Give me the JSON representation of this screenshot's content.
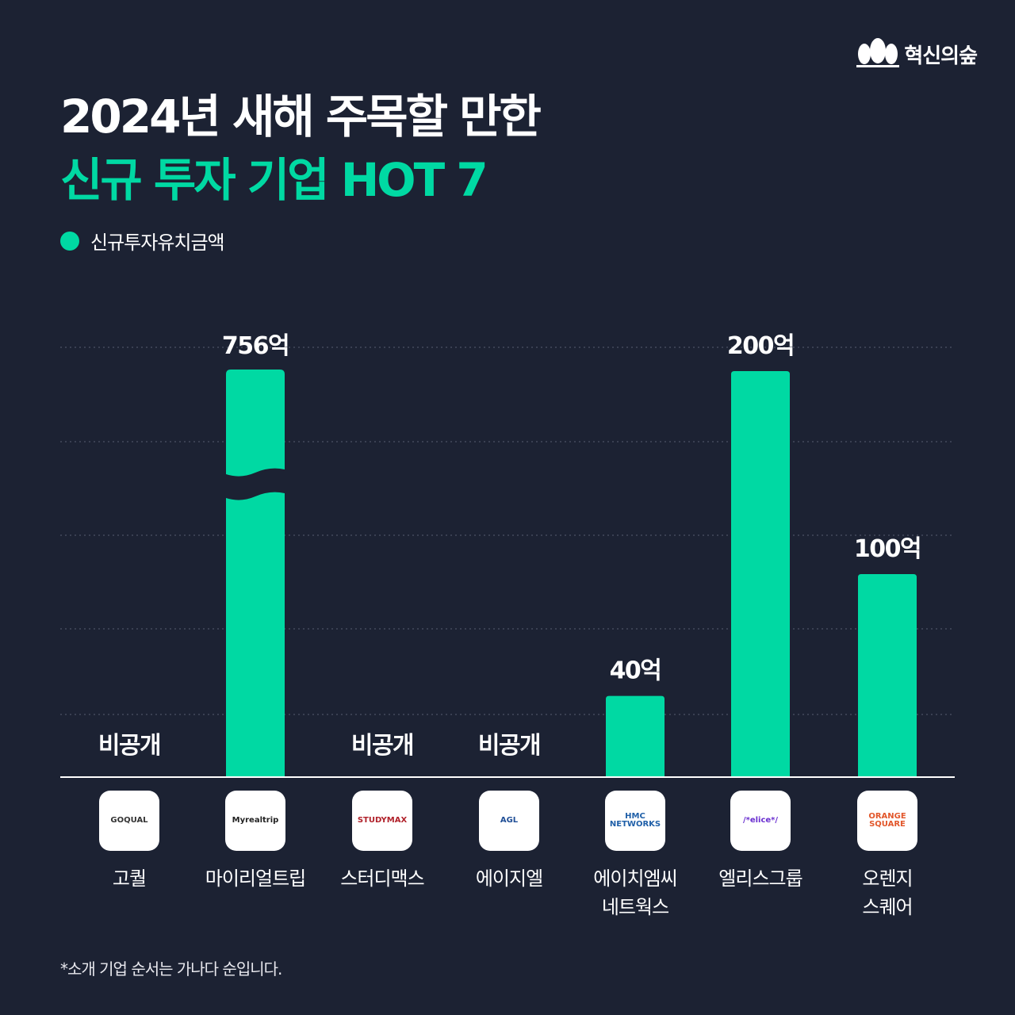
{
  "brand": {
    "name": "혁신의숲",
    "icon": "forest-trees-icon"
  },
  "title": {
    "line1": "2024년 새해 주목할 만한",
    "line2": "신규 투자 기업 HOT 7"
  },
  "legend": {
    "label": "신규투자유치금액",
    "color": "#00d9a3"
  },
  "footnote": "*소개 기업 순서는 가나다 순입니다.",
  "chart_data": {
    "type": "bar",
    "unit": "억",
    "axis_break_on": "마이리얼트립",
    "grid": true,
    "categories": [
      "고퀄",
      "마이리얼트립",
      "스터디맥스",
      "에이지엘",
      "에이치엠씨\n네트웍스",
      "엘리스그룹",
      "오렌지\n스퀘어"
    ],
    "values": [
      null,
      756,
      null,
      null,
      40,
      200,
      100
    ],
    "value_labels": [
      "비공개",
      "756억",
      "비공개",
      "비공개",
      "40억",
      "200억",
      "100억"
    ],
    "logos": [
      "GOQUAL",
      "Myrealtrip",
      "STUDYMAX",
      "AGL",
      "HMC NETWORKS",
      "/*elice*/",
      "ORANGE SQUARE"
    ],
    "bar_color": "#00d9a3"
  }
}
